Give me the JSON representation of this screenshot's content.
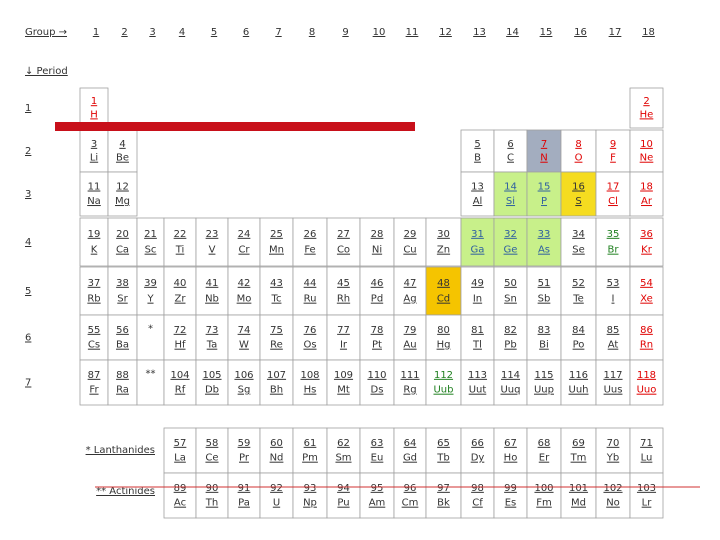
{
  "header": {
    "group_label": "Group →",
    "period_label": "↓ Period",
    "groups": [
      1,
      2,
      3,
      4,
      5,
      6,
      7,
      8,
      9,
      10,
      11,
      12,
      13,
      14,
      15,
      16,
      17,
      18
    ]
  },
  "periods": [
    {
      "label": 1,
      "cells": [
        {
          "number": 1,
          "symbol": "H",
          "color": "#e00000"
        },
        {
          "number": 2,
          "symbol": "He",
          "color": "#e00000"
        }
      ]
    },
    {
      "label": 2,
      "cells": [
        {
          "number": 3,
          "symbol": "Li"
        },
        {
          "number": 4,
          "symbol": "Be"
        },
        {
          "number": 5,
          "symbol": "B"
        },
        {
          "number": 6,
          "symbol": "C"
        },
        {
          "number": 7,
          "symbol": "N",
          "color": "#e00000",
          "fill": "#a3adbf"
        },
        {
          "number": 8,
          "symbol": "O",
          "color": "#e00000"
        },
        {
          "number": 9,
          "symbol": "F",
          "color": "#e00000"
        },
        {
          "number": 10,
          "symbol": "Ne",
          "color": "#e00000"
        }
      ]
    },
    {
      "label": 3,
      "cells": [
        {
          "number": 11,
          "symbol": "Na"
        },
        {
          "number": 12,
          "symbol": "Mg"
        },
        {
          "number": 13,
          "symbol": "Al"
        },
        {
          "number": 14,
          "symbol": "Si",
          "color": "#3060a0",
          "fill": "#c8f08a"
        },
        {
          "number": 15,
          "symbol": "P",
          "color": "#3060a0",
          "fill": "#c8f08a"
        },
        {
          "number": 16,
          "symbol": "S",
          "fill": "#f5dc20"
        },
        {
          "number": 17,
          "symbol": "Cl",
          "color": "#e00000"
        },
        {
          "number": 18,
          "symbol": "Ar",
          "color": "#e00000"
        }
      ]
    },
    {
      "label": 4,
      "cells": [
        {
          "number": 19,
          "symbol": "K"
        },
        {
          "number": 20,
          "symbol": "Ca"
        },
        {
          "number": 21,
          "symbol": "Sc"
        },
        {
          "number": 22,
          "symbol": "Ti"
        },
        {
          "number": 23,
          "symbol": "V"
        },
        {
          "number": 24,
          "symbol": "Cr"
        },
        {
          "number": 25,
          "symbol": "Mn"
        },
        {
          "number": 26,
          "symbol": "Fe"
        },
        {
          "number": 27,
          "symbol": "Co"
        },
        {
          "number": 28,
          "symbol": "Ni"
        },
        {
          "number": 29,
          "symbol": "Cu"
        },
        {
          "number": 30,
          "symbol": "Zn"
        },
        {
          "number": 31,
          "symbol": "Ga",
          "color": "#3060a0",
          "fill": "#c8f08a"
        },
        {
          "number": 32,
          "symbol": "Ge",
          "color": "#3060a0",
          "fill": "#c8f08a"
        },
        {
          "number": 33,
          "symbol": "As",
          "color": "#3060a0",
          "fill": "#c8f08a"
        },
        {
          "number": 34,
          "symbol": "Se"
        },
        {
          "number": 35,
          "symbol": "Br",
          "color": "#208020"
        },
        {
          "number": 36,
          "symbol": "Kr",
          "color": "#e00000"
        }
      ]
    },
    {
      "label": 5,
      "cells": [
        {
          "number": 37,
          "symbol": "Rb"
        },
        {
          "number": 38,
          "symbol": "Sr"
        },
        {
          "number": 39,
          "symbol": "Y"
        },
        {
          "number": 40,
          "symbol": "Zr"
        },
        {
          "number": 41,
          "symbol": "Nb"
        },
        {
          "number": 42,
          "symbol": "Mo"
        },
        {
          "number": 43,
          "symbol": "Tc"
        },
        {
          "number": 44,
          "symbol": "Ru"
        },
        {
          "number": 45,
          "symbol": "Rh"
        },
        {
          "number": 46,
          "symbol": "Pd"
        },
        {
          "number": 47,
          "symbol": "Ag"
        },
        {
          "number": 48,
          "symbol": "Cd",
          "fill": "#f5c400"
        },
        {
          "number": 49,
          "symbol": "In"
        },
        {
          "number": 50,
          "symbol": "Sn"
        },
        {
          "number": 51,
          "symbol": "Sb"
        },
        {
          "number": 52,
          "symbol": "Te"
        },
        {
          "number": 53,
          "symbol": "I"
        },
        {
          "number": 54,
          "symbol": "Xe",
          "color": "#e00000"
        }
      ]
    },
    {
      "label": 6,
      "cells": [
        {
          "number": 55,
          "symbol": "Cs"
        },
        {
          "number": 56,
          "symbol": "Ba"
        },
        {
          "number": "*"
        },
        {
          "number": 72,
          "symbol": "Hf"
        },
        {
          "number": 73,
          "symbol": "Ta"
        },
        {
          "number": 74,
          "symbol": "W"
        },
        {
          "number": 75,
          "symbol": "Re"
        },
        {
          "number": 76,
          "symbol": "Os"
        },
        {
          "number": 77,
          "symbol": "Ir"
        },
        {
          "number": 78,
          "symbol": "Pt"
        },
        {
          "number": 79,
          "symbol": "Au"
        },
        {
          "number": 80,
          "symbol": "Hg"
        },
        {
          "number": 81,
          "symbol": "Tl"
        },
        {
          "number": 82,
          "symbol": "Pb"
        },
        {
          "number": 83,
          "symbol": "Bi"
        },
        {
          "number": 84,
          "symbol": "Po"
        },
        {
          "number": 85,
          "symbol": "At"
        },
        {
          "number": 86,
          "symbol": "Rn",
          "color": "#e00000"
        }
      ]
    },
    {
      "label": 7,
      "cells": [
        {
          "number": 87,
          "symbol": "Fr"
        },
        {
          "number": 88,
          "symbol": "Ra"
        },
        {
          "number": "**"
        },
        {
          "number": 104,
          "symbol": "Rf"
        },
        {
          "number": 105,
          "symbol": "Db"
        },
        {
          "number": 106,
          "symbol": "Sg"
        },
        {
          "number": 107,
          "symbol": "Bh"
        },
        {
          "number": 108,
          "symbol": "Hs"
        },
        {
          "number": 109,
          "symbol": "Mt"
        },
        {
          "number": 110,
          "symbol": "Ds"
        },
        {
          "number": 111,
          "symbol": "Rg"
        },
        {
          "number": 112,
          "symbol": "Uub",
          "color": "#208020"
        },
        {
          "number": 113,
          "symbol": "Uut"
        },
        {
          "number": 114,
          "symbol": "Uuq"
        },
        {
          "number": 115,
          "symbol": "Uup"
        },
        {
          "number": 116,
          "symbol": "Uuh"
        },
        {
          "number": 117,
          "symbol": "Uus"
        },
        {
          "number": 118,
          "symbol": "Uuo",
          "color": "#e00000"
        }
      ]
    }
  ],
  "series": [
    {
      "label": "* Lanthanides",
      "cells": [
        {
          "number": 57,
          "symbol": "La"
        },
        {
          "number": 58,
          "symbol": "Ce"
        },
        {
          "number": 59,
          "symbol": "Pr"
        },
        {
          "number": 60,
          "symbol": "Nd"
        },
        {
          "number": 61,
          "symbol": "Pm"
        },
        {
          "number": 62,
          "symbol": "Sm"
        },
        {
          "number": 63,
          "symbol": "Eu"
        },
        {
          "number": 64,
          "symbol": "Gd"
        },
        {
          "number": 65,
          "symbol": "Tb"
        },
        {
          "number": 66,
          "symbol": "Dy"
        },
        {
          "number": 67,
          "symbol": "Ho"
        },
        {
          "number": 68,
          "symbol": "Er"
        },
        {
          "number": 69,
          "symbol": "Tm"
        },
        {
          "number": 70,
          "symbol": "Yb"
        },
        {
          "number": 71,
          "symbol": "Lu"
        }
      ]
    },
    {
      "label": "** Actinides",
      "cells": [
        {
          "number": 89,
          "symbol": "Ac"
        },
        {
          "number": 90,
          "symbol": "Th"
        },
        {
          "number": 91,
          "symbol": "Pa"
        },
        {
          "number": 92,
          "symbol": "U"
        },
        {
          "number": 93,
          "symbol": "Np"
        },
        {
          "number": 94,
          "symbol": "Pu"
        },
        {
          "number": 95,
          "symbol": "Am"
        },
        {
          "number": 96,
          "symbol": "Cm"
        },
        {
          "number": 97,
          "symbol": "Bk"
        },
        {
          "number": 98,
          "symbol": "Cf"
        },
        {
          "number": 99,
          "symbol": "Es"
        },
        {
          "number": 100,
          "symbol": "Fm"
        },
        {
          "number": 101,
          "symbol": "Md"
        },
        {
          "number": 102,
          "symbol": "No"
        },
        {
          "number": 103,
          "symbol": "Lr"
        }
      ]
    }
  ]
}
